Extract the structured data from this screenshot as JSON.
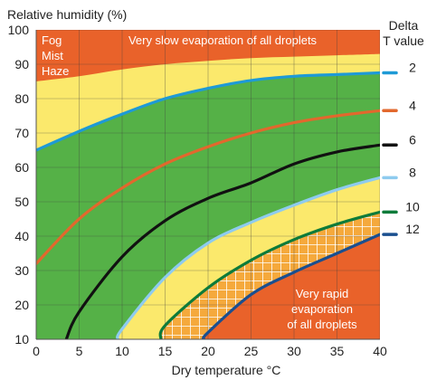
{
  "chart_data": {
    "type": "line",
    "title": "",
    "ylabel": "Relative humidity (%)",
    "xlabel": "Dry temperature °C",
    "xlim": [
      0,
      40
    ],
    "ylim": [
      10,
      100
    ],
    "x_ticks": [
      0,
      5,
      10,
      15,
      20,
      25,
      30,
      35,
      40
    ],
    "y_ticks": [
      10,
      20,
      30,
      40,
      50,
      60,
      70,
      80,
      90,
      100
    ],
    "grid": true,
    "legend": {
      "position": "right",
      "title_line1": "Delta",
      "title_line2": "T value"
    },
    "series": [
      {
        "name": "2",
        "color": "#1e9ad6",
        "x": [
          0,
          5,
          10,
          15,
          20,
          25,
          30,
          35,
          40
        ],
        "y": [
          65,
          70.5,
          75.5,
          80,
          83,
          85.3,
          86.5,
          87,
          87.5
        ]
      },
      {
        "name": "4",
        "color": "#e2682d",
        "x": [
          0,
          5,
          10,
          15,
          20,
          25,
          30,
          35,
          40
        ],
        "y": [
          32,
          45,
          54,
          61,
          66,
          70,
          73,
          75,
          76.5
        ]
      },
      {
        "name": "6",
        "color": "#111111",
        "x": [
          3.5,
          5,
          10,
          15,
          20,
          25,
          30,
          35,
          40
        ],
        "y": [
          10,
          18,
          34,
          44.5,
          51,
          55.5,
          61,
          64.5,
          66.5
        ]
      },
      {
        "name": "8",
        "color": "#8ecbef",
        "x": [
          9.5,
          10,
          15,
          20,
          25,
          30,
          35,
          40
        ],
        "y": [
          10,
          13,
          28,
          38,
          44,
          49,
          53.5,
          57
        ]
      },
      {
        "name": "10",
        "color": "#0d7b3a",
        "x": [
          14.5,
          15,
          20,
          25,
          30,
          35,
          40
        ],
        "y": [
          10,
          14,
          25,
          33,
          39,
          43.5,
          47
        ]
      },
      {
        "name": "12",
        "color": "#1a4f8f",
        "x": [
          19.5,
          20,
          25,
          30,
          35,
          40
        ],
        "y": [
          10,
          12,
          23,
          29.5,
          35,
          40.5
        ]
      }
    ],
    "zones": {
      "fog": {
        "color": "#e9622a",
        "text": [
          "Fog",
          "Mist",
          "Haze"
        ],
        "upper_x": [
          0,
          5,
          10,
          15,
          20,
          25,
          30,
          35,
          40
        ],
        "upper_y": [
          85,
          86.5,
          88.5,
          90,
          91,
          91.8,
          92.2,
          92.6,
          93
        ]
      },
      "slow": {
        "color": "#e9622a",
        "text": "Very slow evaporation of all droplets"
      },
      "yellow_color": "#fbe96c",
      "green_color": "#55b147",
      "rapid": {
        "color": "#e9622a",
        "text": [
          "Very rapid",
          "evaporation",
          "of all droplets"
        ]
      },
      "hatched_color": "#f5a93c"
    }
  }
}
